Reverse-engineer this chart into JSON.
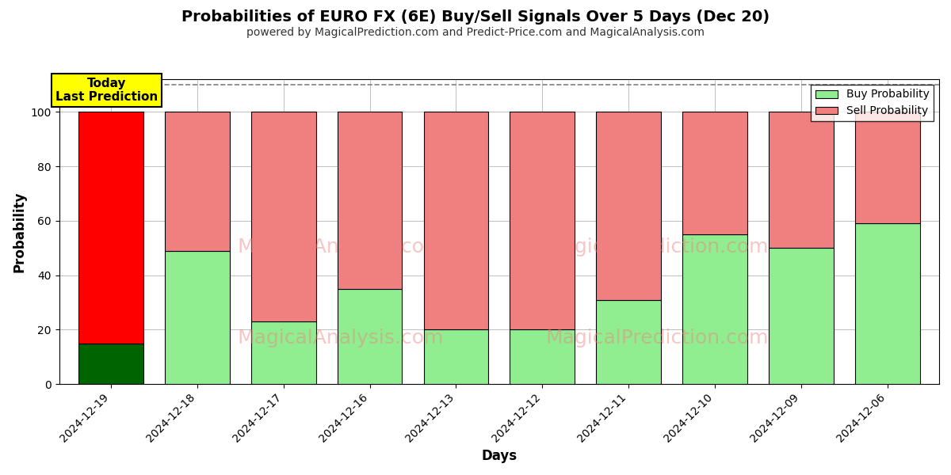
{
  "title": "Probabilities of EURO FX (6E) Buy/Sell Signals Over 5 Days (Dec 20)",
  "subtitle": "powered by MagicalPrediction.com and Predict-Price.com and MagicalAnalysis.com",
  "xlabel": "Days",
  "ylabel": "Probability",
  "dates": [
    "2024-12-19",
    "2024-12-18",
    "2024-12-17",
    "2024-12-16",
    "2024-12-13",
    "2024-12-12",
    "2024-12-11",
    "2024-12-10",
    "2024-12-09",
    "2024-12-06"
  ],
  "buy_probs": [
    15,
    49,
    23,
    35,
    20,
    20,
    31,
    55,
    50,
    59
  ],
  "sell_probs": [
    85,
    51,
    77,
    65,
    80,
    80,
    69,
    45,
    50,
    41
  ],
  "today_buy_color": "#006400",
  "today_sell_color": "#ff0000",
  "buy_color": "#90EE90",
  "sell_color": "#F08080",
  "bar_edge_color": "#000000",
  "today_annotation_text": "Today\nLast Prediction",
  "today_annotation_bg": "#ffff00",
  "ylim": [
    0,
    112
  ],
  "yticks": [
    0,
    20,
    40,
    60,
    80,
    100
  ],
  "dashed_line_y": 110,
  "watermark_left": "MagicalAnalysis.com",
  "watermark_right": "MagicalPrediction.com",
  "background_color": "#ffffff",
  "legend_buy_label": "Buy Probability",
  "legend_sell_label": "Sell Probability",
  "bar_width": 0.75
}
